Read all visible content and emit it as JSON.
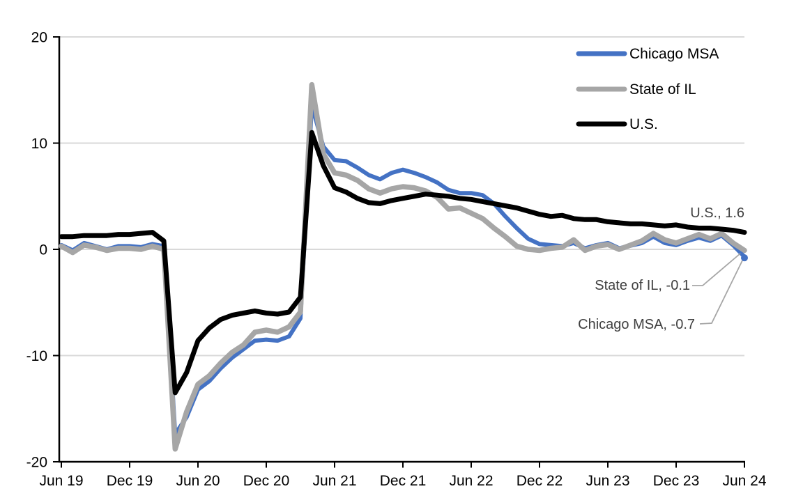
{
  "chart_data": {
    "type": "line",
    "title": "",
    "frequency": "monthly",
    "x_tick_labels": [
      "Jun 19",
      "Dec 19",
      "Jun 20",
      "Dec 20",
      "Jun 21",
      "Dec 21",
      "Jun 22",
      "Dec 22",
      "Jun 23",
      "Dec 23",
      "Jun 24"
    ],
    "x_months": [
      "Jun 2019",
      "Jul 2019",
      "Aug 2019",
      "Sep 2019",
      "Oct 2019",
      "Nov 2019",
      "Dec 2019",
      "Jan 2020",
      "Feb 2020",
      "Mar 2020",
      "Apr 2020",
      "May 2020",
      "Jun 2020",
      "Jul 2020",
      "Aug 2020",
      "Sep 2020",
      "Oct 2020",
      "Nov 2020",
      "Dec 2020",
      "Jan 2021",
      "Feb 2021",
      "Mar 2021",
      "Apr 2021",
      "May 2021",
      "Jun 2021",
      "Jul 2021",
      "Aug 2021",
      "Sep 2021",
      "Oct 2021",
      "Nov 2021",
      "Dec 2021",
      "Jan 2022",
      "Feb 2022",
      "Mar 2022",
      "Apr 2022",
      "May 2022",
      "Jun 2022",
      "Jul 2022",
      "Aug 2022",
      "Sep 2022",
      "Oct 2022",
      "Nov 2022",
      "Dec 2022",
      "Jan 2023",
      "Feb 2023",
      "Mar 2023",
      "Apr 2023",
      "May 2023",
      "Jun 2023",
      "Jul 2023",
      "Aug 2023",
      "Sep 2023",
      "Oct 2023",
      "Nov 2023",
      "Dec 2023",
      "Jan 2024",
      "Feb 2024",
      "Mar 2024",
      "Apr 2024",
      "May 2024",
      "Jun 2024"
    ],
    "ylim": [
      -20,
      20
    ],
    "y_ticks": [
      20,
      10,
      0,
      -10,
      -20
    ],
    "grid": "horizontal",
    "legend_position": "top-right",
    "series": [
      {
        "name": "Chicago MSA",
        "color": "#4472C4",
        "final_value": -0.7,
        "values": [
          0.4,
          -0.1,
          0.6,
          0.3,
          0.0,
          0.3,
          0.3,
          0.2,
          0.5,
          0.3,
          -17.4,
          -15.8,
          -13.2,
          -12.4,
          -11.2,
          -10.2,
          -9.4,
          -8.6,
          -8.5,
          -8.6,
          -8.2,
          -6.5,
          13.6,
          9.7,
          8.4,
          8.3,
          7.7,
          7.0,
          6.6,
          7.2,
          7.5,
          7.2,
          6.8,
          6.3,
          5.6,
          5.3,
          5.3,
          5.1,
          4.3,
          3.1,
          2.0,
          1.0,
          0.5,
          0.4,
          0.3,
          0.6,
          0.1,
          0.4,
          0.6,
          0.1,
          0.35,
          0.6,
          1.2,
          0.6,
          0.4,
          0.8,
          1.1,
          0.8,
          1.3,
          0.4,
          -0.7
        ]
      },
      {
        "name": "State of IL",
        "color": "#A6A6A6",
        "final_value": -0.1,
        "values": [
          0.3,
          -0.3,
          0.4,
          0.2,
          -0.1,
          0.1,
          0.1,
          0.0,
          0.3,
          0.0,
          -18.8,
          -15.3,
          -12.7,
          -11.9,
          -10.7,
          -9.7,
          -9.0,
          -7.8,
          -7.6,
          -7.8,
          -7.3,
          -5.9,
          15.5,
          9.0,
          7.2,
          7.0,
          6.5,
          5.7,
          5.3,
          5.7,
          5.9,
          5.8,
          5.5,
          4.9,
          3.8,
          3.9,
          3.4,
          2.9,
          2.0,
          1.2,
          0.3,
          0.0,
          -0.1,
          0.1,
          0.2,
          0.9,
          -0.1,
          0.3,
          0.45,
          0.0,
          0.4,
          0.8,
          1.5,
          0.9,
          0.6,
          1.0,
          1.4,
          1.0,
          1.5,
          0.6,
          -0.1
        ]
      },
      {
        "name": "U.S.",
        "color": "#000000",
        "final_value": 1.6,
        "values": [
          1.2,
          1.2,
          1.3,
          1.3,
          1.3,
          1.4,
          1.4,
          1.5,
          1.6,
          0.8,
          -13.5,
          -11.6,
          -8.6,
          -7.4,
          -6.6,
          -6.2,
          -6.0,
          -5.8,
          -6.0,
          -6.1,
          -5.9,
          -4.5,
          11.0,
          7.9,
          5.8,
          5.4,
          4.8,
          4.4,
          4.3,
          4.6,
          4.8,
          5.0,
          5.2,
          5.1,
          5.0,
          4.8,
          4.7,
          4.5,
          4.3,
          4.1,
          3.9,
          3.6,
          3.3,
          3.1,
          3.2,
          2.9,
          2.8,
          2.8,
          2.6,
          2.5,
          2.4,
          2.4,
          2.3,
          2.2,
          2.3,
          2.1,
          2.0,
          2.0,
          1.9,
          1.8,
          1.6
        ]
      }
    ],
    "annotations": [
      {
        "text": "U.S., 1.6"
      },
      {
        "text": "State of IL, -0.1"
      },
      {
        "text": "Chicago MSA, -0.7"
      }
    ]
  },
  "colors": {
    "gridline": "#D9D9D9",
    "axis": "#000000",
    "annotation_text": "#404040",
    "leader_line": "#A6A6A6"
  }
}
